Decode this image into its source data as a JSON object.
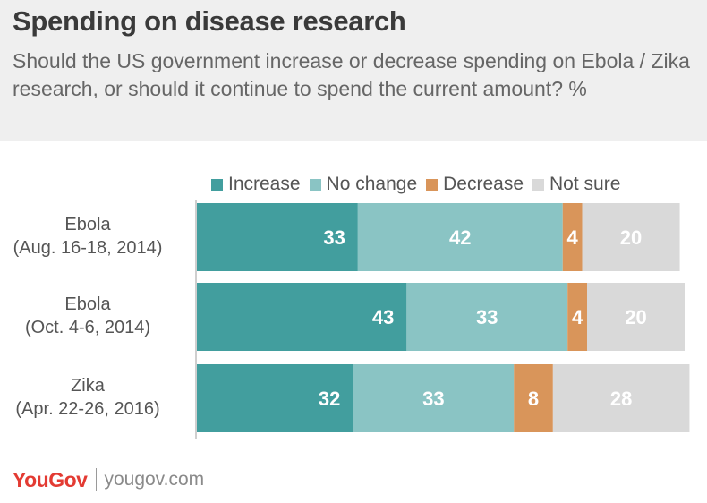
{
  "header": {
    "title": "Spending on disease research",
    "subtitle": "Should the US government increase or decrease spending on Ebola / Zika research, or should it continue to spend the current amount? %"
  },
  "footer": {
    "brand": "YouGov",
    "site": "yougov.com"
  },
  "chart_data": {
    "type": "bar",
    "orientation": "horizontal",
    "stacked": true,
    "title": "Spending on disease research",
    "subtitle": "Should the US government increase or decrease spending on Ebola / Zika research, or should it continue to spend the current amount? %",
    "categories": [
      {
        "name": "Ebola",
        "date": "(Aug. 16-18, 2014)"
      },
      {
        "name": "Ebola",
        "date": "(Oct. 4-6, 2014)"
      },
      {
        "name": "Zika",
        "date": "(Apr. 22-26, 2016)"
      }
    ],
    "series": [
      {
        "name": "Increase",
        "color": "#429e9e",
        "label_color": "#ffffff",
        "values": [
          33,
          43,
          32
        ]
      },
      {
        "name": "No change",
        "color": "#8ac4c4",
        "label_color": "#ffffff",
        "values": [
          42,
          33,
          33
        ]
      },
      {
        "name": "Decrease",
        "color": "#d9955a",
        "label_color": "#ffffff",
        "values": [
          4,
          4,
          8
        ]
      },
      {
        "name": "Not sure",
        "color": "#d9d9d9",
        "label_color": "#ffffff",
        "values": [
          20,
          20,
          28
        ]
      }
    ],
    "legend_position": "top",
    "grid": false
  }
}
